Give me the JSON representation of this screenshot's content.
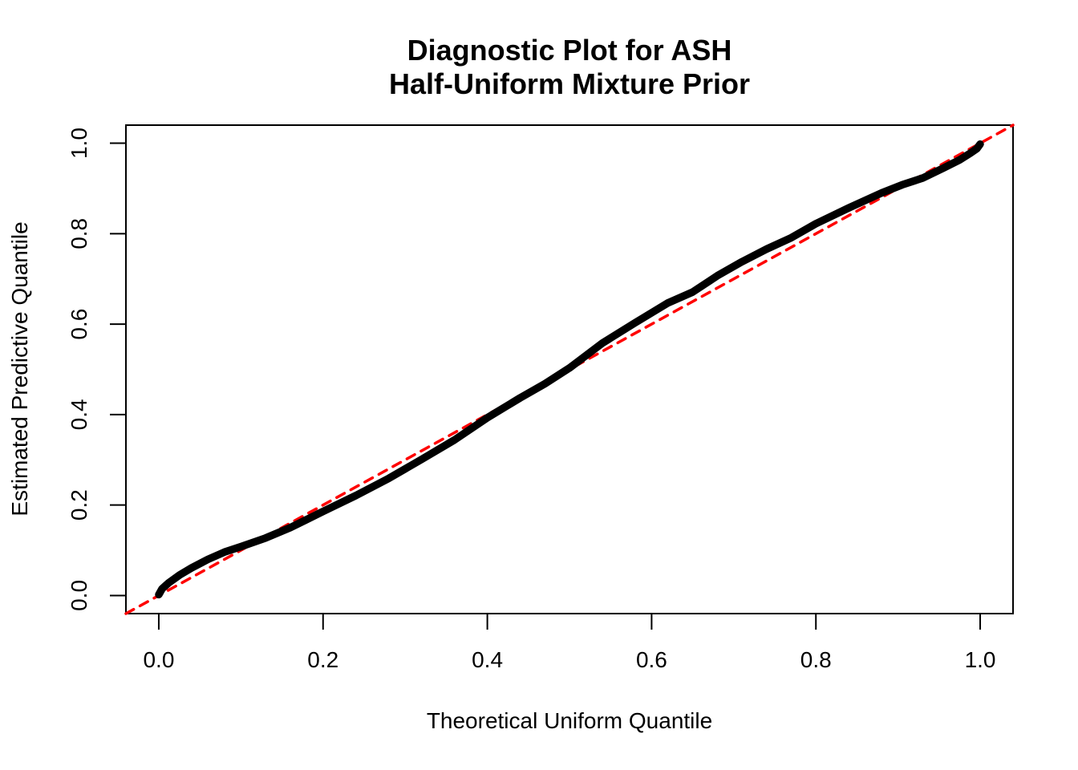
{
  "figure": {
    "title_line1": "Diagnostic Plot for ASH",
    "title_line2": "Half-Uniform Mixture Prior",
    "background_color": "#FFFFFF",
    "frame_color": "#000000"
  },
  "chart_data": {
    "type": "line",
    "title": "Diagnostic Plot for ASH\nHalf-Uniform Mixture Prior",
    "xlabel": "Theoretical Uniform Quantile",
    "ylabel": "Estimated Predictive Quantile",
    "xlim": [
      -0.04,
      1.04
    ],
    "ylim": [
      -0.04,
      1.04
    ],
    "grid": false,
    "legend_position": "none",
    "x_ticks": {
      "values": [
        0.0,
        0.2,
        0.4,
        0.6,
        0.8,
        1.0
      ],
      "labels": [
        "0.0",
        "0.2",
        "0.4",
        "0.6",
        "0.8",
        "1.0"
      ]
    },
    "y_ticks": {
      "values": [
        0.0,
        0.2,
        0.4,
        0.6,
        0.8,
        1.0
      ],
      "labels": [
        "0.0",
        "0.2",
        "0.4",
        "0.6",
        "0.8",
        "1.0"
      ]
    },
    "series": [
      {
        "name": "identity-reference-line",
        "description": "y = x reference diagonal",
        "color": "#FF0000",
        "style": "dashed",
        "stroke_width": 3.5,
        "points": [
          [
            -0.04,
            -0.04
          ],
          [
            1.04,
            1.04
          ]
        ]
      },
      {
        "name": "estimated-predictive-quantile-curve",
        "description": "sorted estimated predictive quantiles vs theoretical uniform quantiles",
        "color": "#000000",
        "style": "solid",
        "stroke_width": 9.5,
        "points": [
          [
            0.0,
            0.002
          ],
          [
            0.004,
            0.015
          ],
          [
            0.012,
            0.028
          ],
          [
            0.025,
            0.045
          ],
          [
            0.04,
            0.061
          ],
          [
            0.06,
            0.08
          ],
          [
            0.08,
            0.096
          ],
          [
            0.1,
            0.108
          ],
          [
            0.13,
            0.127
          ],
          [
            0.16,
            0.15
          ],
          [
            0.2,
            0.186
          ],
          [
            0.24,
            0.221
          ],
          [
            0.28,
            0.259
          ],
          [
            0.32,
            0.301
          ],
          [
            0.36,
            0.344
          ],
          [
            0.4,
            0.393
          ],
          [
            0.44,
            0.437
          ],
          [
            0.47,
            0.468
          ],
          [
            0.5,
            0.503
          ],
          [
            0.54,
            0.558
          ],
          [
            0.58,
            0.603
          ],
          [
            0.62,
            0.647
          ],
          [
            0.65,
            0.671
          ],
          [
            0.68,
            0.707
          ],
          [
            0.71,
            0.738
          ],
          [
            0.74,
            0.766
          ],
          [
            0.77,
            0.791
          ],
          [
            0.8,
            0.822
          ],
          [
            0.84,
            0.857
          ],
          [
            0.88,
            0.89
          ],
          [
            0.905,
            0.908
          ],
          [
            0.93,
            0.923
          ],
          [
            0.955,
            0.945
          ],
          [
            0.975,
            0.963
          ],
          [
            0.988,
            0.978
          ],
          [
            0.996,
            0.988
          ],
          [
            1.0,
            0.998
          ]
        ]
      }
    ]
  }
}
